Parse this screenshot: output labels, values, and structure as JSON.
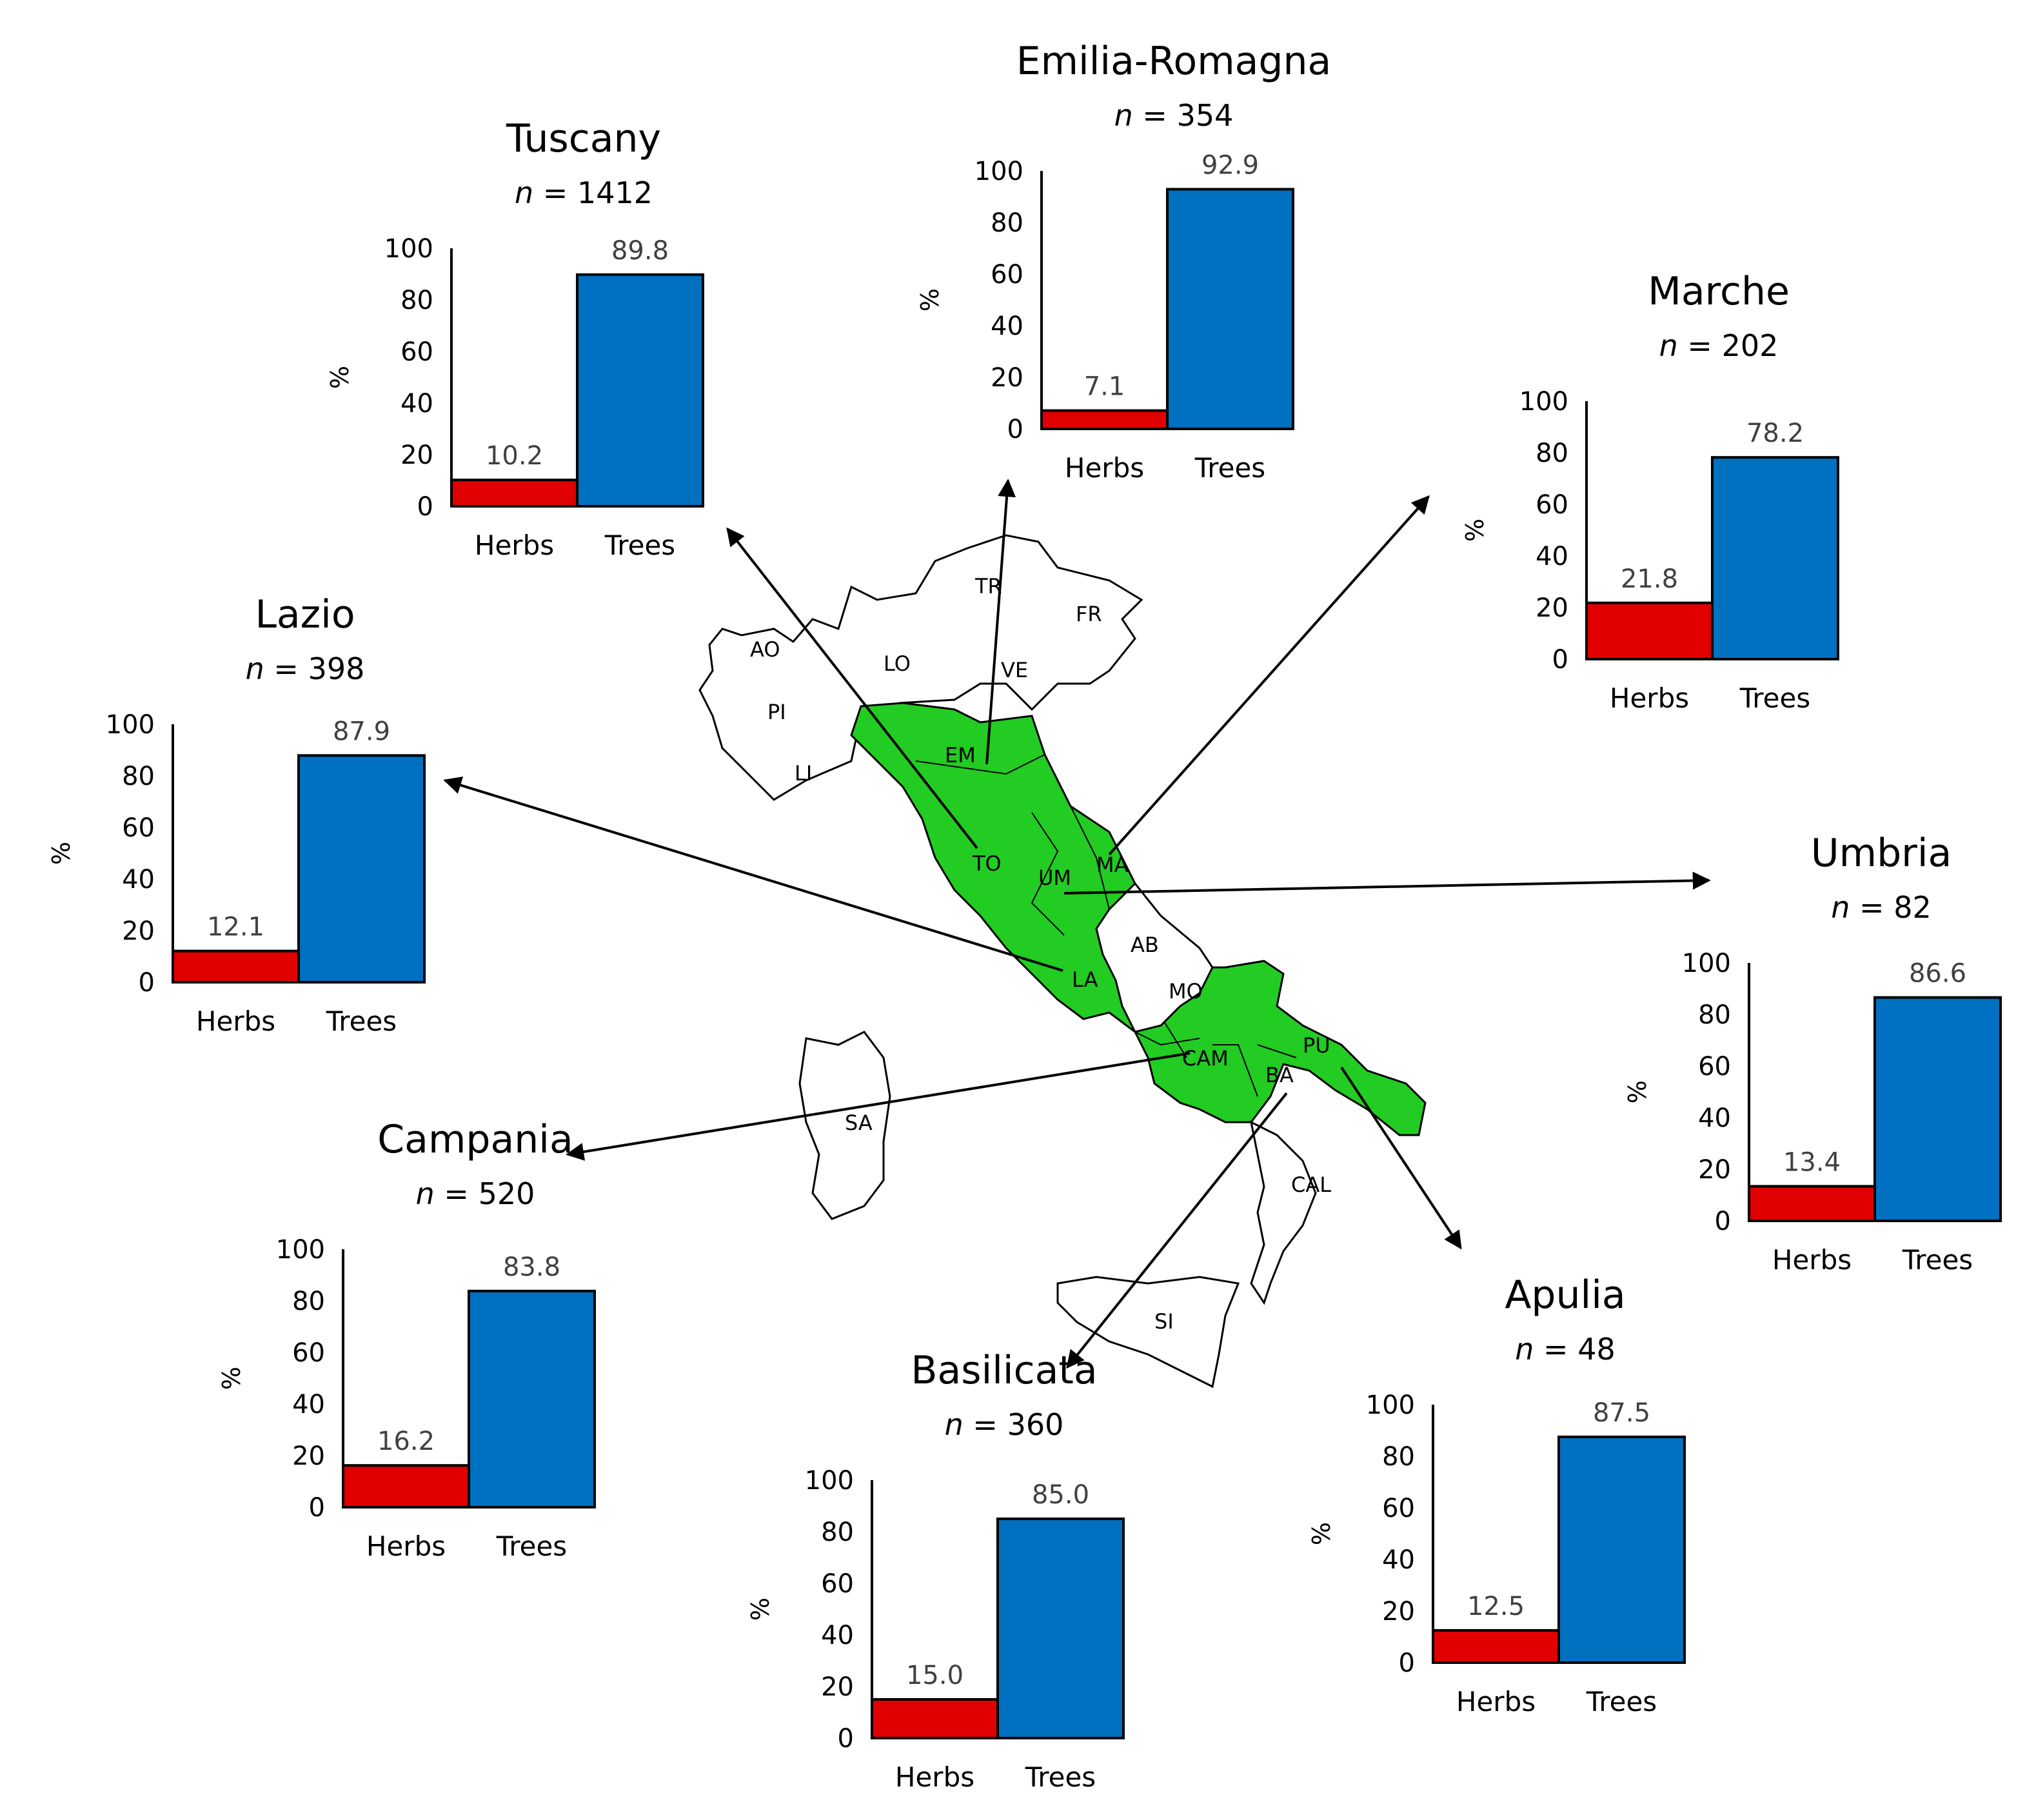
{
  "colors": {
    "herbs": "#e00000",
    "trees": "#0070c0",
    "highlight": "#22cc22",
    "outline": "#000000"
  },
  "chart_data": [
    {
      "type": "bar",
      "title": "Tuscany",
      "n_prefix": "n",
      "n_value": " = 1412",
      "ylabel": "%",
      "categories": [
        "Herbs",
        "Trees"
      ],
      "values": [
        10.2,
        89.8
      ],
      "value_labels": [
        "10.2",
        "89.8"
      ],
      "yticks": [
        "0",
        "20",
        "40",
        "60",
        "80",
        "100"
      ],
      "ylim": [
        0,
        100
      ]
    },
    {
      "type": "bar",
      "title": "Emilia-Romagna",
      "n_prefix": "n",
      "n_value": " = 354",
      "ylabel": "%",
      "categories": [
        "Herbs",
        "Trees"
      ],
      "values": [
        7.1,
        92.9
      ],
      "value_labels": [
        "7.1",
        "92.9"
      ],
      "yticks": [
        "0",
        "20",
        "40",
        "60",
        "80",
        "100"
      ],
      "ylim": [
        0,
        100
      ]
    },
    {
      "type": "bar",
      "title": "Marche",
      "n_prefix": "n",
      "n_value": " = 202",
      "ylabel": "%",
      "categories": [
        "Herbs",
        "Trees"
      ],
      "values": [
        21.8,
        78.2
      ],
      "value_labels": [
        "21.8",
        "78.2"
      ],
      "yticks": [
        "0",
        "20",
        "40",
        "60",
        "80",
        "100"
      ],
      "ylim": [
        0,
        100
      ]
    },
    {
      "type": "bar",
      "title": "Lazio",
      "n_prefix": "n",
      "n_value": " = 398",
      "ylabel": "%",
      "categories": [
        "Herbs",
        "Trees"
      ],
      "values": [
        12.1,
        87.9
      ],
      "value_labels": [
        "12.1",
        "87.9"
      ],
      "yticks": [
        "0",
        "20",
        "40",
        "60",
        "80",
        "100"
      ],
      "ylim": [
        0,
        100
      ]
    },
    {
      "type": "bar",
      "title": "Umbria",
      "n_prefix": "n",
      "n_value": " = 82",
      "ylabel": "%",
      "categories": [
        "Herbs",
        "Trees"
      ],
      "values": [
        13.4,
        86.6
      ],
      "value_labels": [
        "13.4",
        "86.6"
      ],
      "yticks": [
        "0",
        "20",
        "40",
        "60",
        "80",
        "100"
      ],
      "ylim": [
        0,
        100
      ]
    },
    {
      "type": "bar",
      "title": "Campania",
      "n_prefix": "n",
      "n_value": " = 520",
      "ylabel": "%",
      "categories": [
        "Herbs",
        "Trees"
      ],
      "values": [
        16.2,
        83.8
      ],
      "value_labels": [
        "16.2",
        "83.8"
      ],
      "yticks": [
        "0",
        "20",
        "40",
        "60",
        "80",
        "100"
      ],
      "ylim": [
        0,
        100
      ]
    },
    {
      "type": "bar",
      "title": "Basilicata",
      "n_prefix": "n",
      "n_value": " = 360",
      "ylabel": "%",
      "categories": [
        "Herbs",
        "Trees"
      ],
      "values": [
        15.0,
        85.0
      ],
      "value_labels": [
        "15.0",
        "85.0"
      ],
      "yticks": [
        "0",
        "20",
        "40",
        "60",
        "80",
        "100"
      ],
      "ylim": [
        0,
        100
      ]
    },
    {
      "type": "bar",
      "title": "Apulia",
      "n_prefix": "n",
      "n_value": " = 48",
      "ylabel": "%",
      "categories": [
        "Herbs",
        "Trees"
      ],
      "values": [
        12.5,
        87.5
      ],
      "value_labels": [
        "12.5",
        "87.5"
      ],
      "yticks": [
        "0",
        "20",
        "40",
        "60",
        "80",
        "100"
      ],
      "ylim": [
        0,
        100
      ]
    }
  ],
  "map": {
    "region_codes": {
      "AO": "AO",
      "PI": "PI",
      "LI": "LI",
      "LO": "LO",
      "TR": "TR",
      "VE": "VE",
      "FR": "FR",
      "EM": "EM",
      "TO": "TO",
      "UM": "UM",
      "MA": "MA",
      "LA": "LA",
      "AB": "AB",
      "MO": "MO",
      "CAM": "CAM",
      "PU": "PU",
      "BA": "BA",
      "CAL": "CAL",
      "SA": "SA",
      "SI": "SI"
    }
  }
}
